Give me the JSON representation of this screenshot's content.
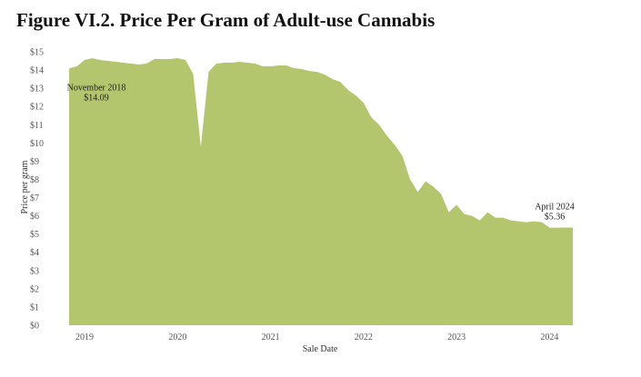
{
  "chart_data": {
    "type": "area",
    "title": "Figure VI.2. Price Per Gram of Adult-use Cannabis",
    "xlabel": "Sale Date",
    "ylabel": "Price per gram",
    "color": "#b3c56d",
    "xlim": [
      "2018-11",
      "2024-04"
    ],
    "ylim": [
      0,
      15
    ],
    "y_ticks": [
      0,
      1,
      2,
      3,
      4,
      5,
      6,
      7,
      8,
      9,
      10,
      11,
      12,
      13,
      14,
      15
    ],
    "y_tick_labels": [
      "$0",
      "$1",
      "$2",
      "$3",
      "$4",
      "$5",
      "$6",
      "$7",
      "$8",
      "$9",
      "$10",
      "$11",
      "$12",
      "$13",
      "$14",
      "$15"
    ],
    "x_ticks": [
      "2019-01",
      "2020-01",
      "2021-01",
      "2022-01",
      "2023-01",
      "2024-01"
    ],
    "x_tick_labels": [
      "2019",
      "2020",
      "2021",
      "2022",
      "2023",
      "2024"
    ],
    "grid": false,
    "annotations": [
      {
        "x": "2018-11",
        "y": 14.09,
        "lines": [
          "November 2018",
          "$14.09"
        ]
      },
      {
        "x": "2024-04",
        "y": 5.36,
        "lines": [
          "April 2024",
          "$5.36"
        ]
      }
    ],
    "series": [
      {
        "x": [
          "2018-11",
          "2018-12",
          "2019-01",
          "2019-02",
          "2019-03",
          "2019-04",
          "2019-05",
          "2019-06",
          "2019-07",
          "2019-08",
          "2019-09",
          "2019-10",
          "2019-11",
          "2019-12",
          "2020-01",
          "2020-02",
          "2020-03",
          "2020-04",
          "2020-05",
          "2020-06",
          "2020-07",
          "2020-08",
          "2020-09",
          "2020-10",
          "2020-11",
          "2020-12",
          "2021-01",
          "2021-02",
          "2021-03",
          "2021-04",
          "2021-05",
          "2021-06",
          "2021-07",
          "2021-08",
          "2021-09",
          "2021-10",
          "2021-11",
          "2021-12",
          "2022-01",
          "2022-02",
          "2022-03",
          "2022-04",
          "2022-05",
          "2022-06",
          "2022-07",
          "2022-08",
          "2022-09",
          "2022-10",
          "2022-11",
          "2022-12",
          "2023-01",
          "2023-02",
          "2023-03",
          "2023-04",
          "2023-05",
          "2023-06",
          "2023-07",
          "2023-08",
          "2023-09",
          "2023-10",
          "2023-11",
          "2023-12",
          "2024-01",
          "2024-02",
          "2024-03",
          "2024-04"
        ],
        "values": [
          14.09,
          14.2,
          14.55,
          14.65,
          14.55,
          14.5,
          14.45,
          14.4,
          14.35,
          14.3,
          14.35,
          14.6,
          14.6,
          14.6,
          14.65,
          14.55,
          13.8,
          9.8,
          13.9,
          14.35,
          14.4,
          14.4,
          14.45,
          14.4,
          14.35,
          14.2,
          14.2,
          14.25,
          14.25,
          14.1,
          14.05,
          13.95,
          13.9,
          13.75,
          13.5,
          13.35,
          12.9,
          12.6,
          12.2,
          11.4,
          11.0,
          10.4,
          9.9,
          9.3,
          8.0,
          7.3,
          7.9,
          7.6,
          7.2,
          6.2,
          6.6,
          6.1,
          6.0,
          5.75,
          6.2,
          5.9,
          5.9,
          5.75,
          5.7,
          5.65,
          5.7,
          5.65,
          5.35,
          5.35,
          5.36,
          5.36
        ]
      }
    ]
  }
}
